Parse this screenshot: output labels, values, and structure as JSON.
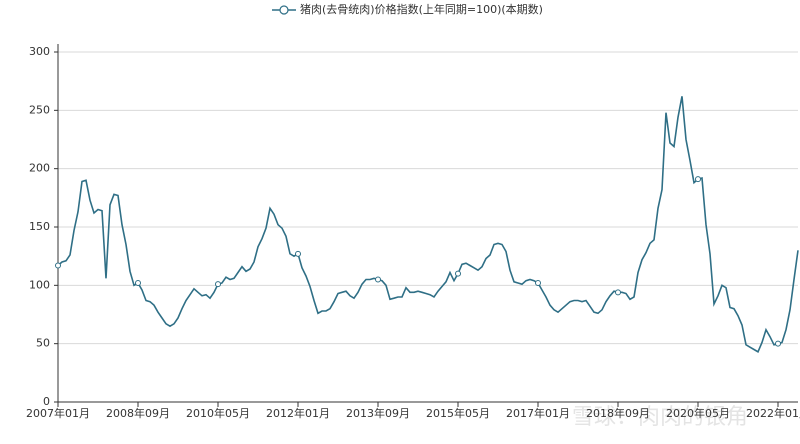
{
  "chart_data": {
    "type": "line",
    "series": [
      {
        "name": "猪肉(去骨统肉)价格指数(上年同期=100)(本期数)",
        "color": "#2f6f86",
        "values": [
          117,
          120,
          121,
          126,
          147,
          163,
          189,
          190,
          173,
          162,
          165,
          164,
          106,
          169,
          178,
          177,
          152,
          135,
          112,
          100,
          102,
          96,
          87,
          86,
          83,
          77,
          72,
          67,
          65,
          67,
          72,
          80,
          87,
          92,
          97,
          94,
          91,
          92,
          89,
          94,
          101,
          102,
          107,
          105,
          106,
          111,
          116,
          112,
          114,
          120,
          133,
          140,
          149,
          166,
          161,
          152,
          149,
          142,
          127,
          125,
          127,
          115,
          108,
          99,
          87,
          76,
          78,
          78,
          80,
          86,
          93,
          94,
          95,
          91,
          89,
          94,
          101,
          105,
          105,
          106,
          105,
          104,
          100,
          88,
          89,
          90,
          90,
          98,
          94,
          94,
          95,
          94,
          93,
          92,
          90,
          95,
          99,
          103,
          111,
          104,
          110,
          118,
          119,
          117,
          115,
          113,
          116,
          123,
          126,
          135,
          136,
          135,
          129,
          113,
          103,
          102,
          101,
          104,
          105,
          104,
          102,
          96,
          90,
          83,
          79,
          77,
          80,
          83,
          86,
          87,
          87,
          86,
          87,
          82,
          77,
          76,
          79,
          86,
          91,
          95,
          94,
          94,
          93,
          88,
          90,
          111,
          122,
          128,
          136,
          139,
          166,
          182,
          248,
          222,
          219,
          244,
          262,
          225,
          207,
          188,
          191,
          192,
          152,
          127,
          84,
          91,
          100,
          98,
          81,
          80,
          74,
          66,
          49,
          47,
          45,
          43,
          51,
          62,
          56,
          49,
          50,
          51,
          62,
          79,
          105,
          130
        ]
      }
    ],
    "categories": [
      "2007年01月",
      null,
      null,
      null,
      null,
      null,
      null,
      null,
      null,
      null,
      null,
      null,
      null,
      null,
      null,
      null,
      null,
      null,
      null,
      null,
      "2008年09月",
      null,
      null,
      null,
      null,
      null,
      null,
      null,
      null,
      null,
      null,
      null,
      null,
      null,
      null,
      null,
      null,
      null,
      null,
      null,
      "2010年05月",
      null,
      null,
      null,
      null,
      null,
      null,
      null,
      null,
      null,
      null,
      null,
      null,
      null,
      null,
      null,
      null,
      null,
      null,
      null,
      "2012年01月",
      null,
      null,
      null,
      null,
      null,
      null,
      null,
      null,
      null,
      null,
      null,
      null,
      null,
      null,
      null,
      null,
      null,
      null,
      null,
      "2013年09月",
      null,
      null,
      null,
      null,
      null,
      null,
      null,
      null,
      null,
      null,
      null,
      null,
      null,
      null,
      null,
      null,
      null,
      null,
      null,
      "2015年05月",
      null,
      null,
      null,
      null,
      null,
      null,
      null,
      null,
      null,
      null,
      null,
      null,
      null,
      null,
      null,
      null,
      null,
      null,
      null,
      "2017年01月",
      null,
      null,
      null,
      null,
      null,
      null,
      null,
      null,
      null,
      null,
      null,
      null,
      null,
      null,
      null,
      null,
      null,
      null,
      null,
      "2018年09月",
      null,
      null,
      null,
      null,
      null,
      null,
      null,
      null,
      null,
      null,
      null,
      null,
      null,
      null,
      null,
      null,
      null,
      null,
      null,
      "2020年05月",
      null,
      null,
      null,
      null,
      null,
      null,
      null,
      null,
      null,
      null,
      null,
      null,
      null,
      null,
      null,
      null,
      null,
      null,
      null,
      "2022年01月",
      null,
      null,
      null,
      null,
      null
    ],
    "ylim": [
      0,
      300
    ],
    "yticks": [
      0,
      50,
      100,
      150,
      200,
      250,
      300
    ],
    "grid": true,
    "legend": "top",
    "watermark": "雪球：肉肉的银角"
  }
}
